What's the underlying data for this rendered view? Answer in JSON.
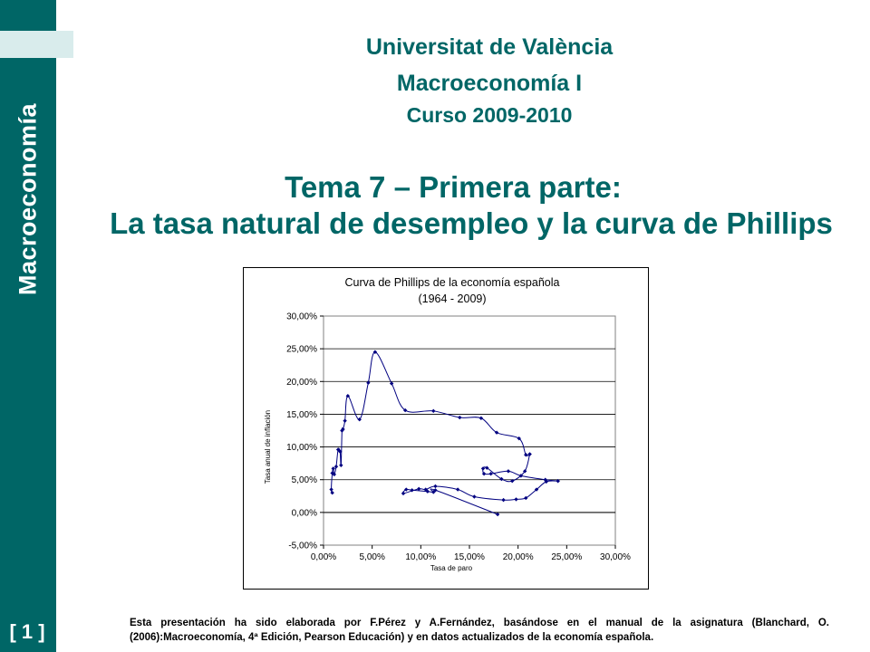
{
  "sidebar": {
    "title": "Macroeconomía",
    "page_number": "[ 1 ]"
  },
  "header": {
    "university": "Universitat de València",
    "course": "Macroeconomía I",
    "year": "Curso 2009-2010"
  },
  "topic": {
    "line1": "Tema 7 – Primera parte:",
    "line2": "La tasa natural de desempleo y la curva de Phillips"
  },
  "colors": {
    "brand": "#006666",
    "series": "#000080"
  },
  "chart_data": {
    "type": "scatter",
    "title": "Curva de Phillips de la economía española",
    "subtitle": "(1964 - 2009)",
    "xlabel": "Tasa de paro",
    "ylabel": "Tasa anual de inflación",
    "xlim": [
      0,
      30
    ],
    "ylim": [
      -5,
      30
    ],
    "x_ticks": [
      "0,00%",
      "5,00%",
      "10,00%",
      "15,00%",
      "20,00%",
      "25,00%",
      "30,00%"
    ],
    "y_ticks": [
      "-5,00%",
      "0,00%",
      "5,00%",
      "10,00%",
      "15,00%",
      "20,00%",
      "25,00%",
      "30,00%"
    ],
    "grid": "horizontal",
    "series": [
      {
        "values_x": [
          0.9,
          0.8,
          0.9,
          1.0,
          1.1,
          1.3,
          1.5,
          1.7,
          1.8,
          1.9,
          2.0,
          2.2,
          2.5,
          3.7,
          4.6,
          5.3,
          7.0,
          8.4,
          11.3,
          14.0,
          16.2,
          17.8,
          20.1,
          20.8,
          21.2
        ],
        "values_y": [
          3.0,
          3.5,
          6.0,
          6.7,
          5.8,
          7.0,
          9.6,
          9.3,
          7.2,
          12.5,
          12.7,
          14.0,
          17.8,
          14.2,
          19.8,
          24.5,
          19.7,
          15.6,
          15.5,
          14.5,
          14.4,
          12.2,
          11.3,
          8.8,
          8.9
        ]
      },
      {
        "values_x": [
          21.2,
          20.7,
          19.4,
          18.3,
          16.8,
          16.4,
          16.5,
          17.2,
          19.0,
          20.3,
          22.8,
          24.1
        ],
        "values_y": [
          8.9,
          6.3,
          4.8,
          5.1,
          6.8,
          6.7,
          5.9,
          5.9,
          6.3,
          5.6,
          5.0,
          4.8
        ]
      },
      {
        "values_x": [
          24.1,
          22.9,
          21.9,
          20.8,
          19.8,
          18.5,
          15.5,
          13.8,
          11.5,
          10.5,
          9.8,
          8.2,
          8.5,
          9.1,
          10.7,
          11.3,
          11.5,
          17.9
        ],
        "values_y": [
          4.8,
          4.7,
          3.5,
          2.2,
          2.0,
          1.9,
          2.4,
          3.5,
          4.0,
          3.5,
          3.6,
          2.9,
          3.5,
          3.4,
          3.2,
          3.1,
          3.4,
          -0.3
        ]
      }
    ]
  },
  "footer": {
    "text": "Esta presentación ha sido elaborada por F.Pérez y A.Fernández, basándose en el manual de la asignatura (Blanchard, O. (2006):Macroeconomía, 4ª Edición, Pearson Educación) y en datos actualizados de la economía española."
  }
}
